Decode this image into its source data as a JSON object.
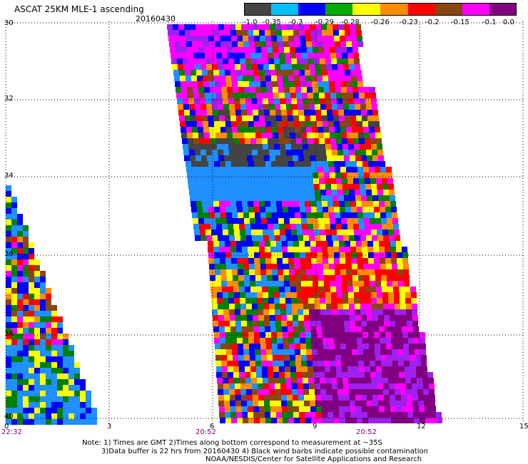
{
  "header": {
    "title": "ASCAT 25KM MLE-1 ascending",
    "date": "20160430"
  },
  "color_scale": {
    "labels": [
      "-1.0",
      "-0.35",
      "-0.3",
      "-0.29",
      "-0.28",
      "-0.26",
      "-0.23",
      "-0.2",
      "-0.15",
      "-0.1",
      "0.0"
    ],
    "colors": [
      "#000000",
      "#808080",
      "#00c0ff",
      "#0000ff",
      "#00aa00",
      "#ffff00",
      "#ff8c00",
      "#ff0000",
      "#8b4513",
      "#ff00ff",
      "#800080"
    ]
  },
  "axes": {
    "y_ticks": [
      "30",
      "32",
      "34",
      "36",
      "38",
      "40"
    ],
    "x_ticks": [
      "0",
      "3",
      "6",
      "9",
      "12",
      "15"
    ],
    "time_labels": [
      "22:32",
      "20:52",
      "20:52"
    ]
  },
  "notes": [
    "Note: 1) Times are GMT 2)Times along bottom correspond to measurement at ~35S",
    "3)Data buffer is 22 hrs from 20160430 4) Black wind barbs indicate possible contamination",
    "NOAA/NESDIS/Center for Satellite Applications and Research"
  ]
}
